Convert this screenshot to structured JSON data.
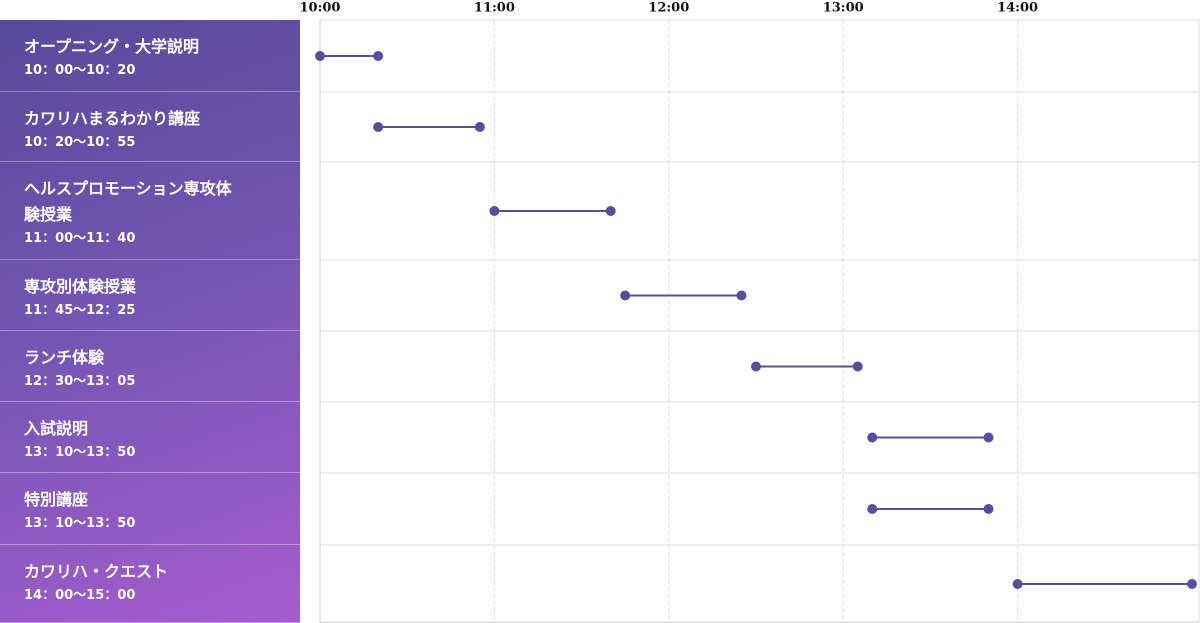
{
  "chart_data": {
    "type": "range",
    "categories": [
      "オープニング・大学説明",
      "カワリハまるわかり講座",
      "ヘルスプロモーション専攻体験授業",
      "専攻別体験授業",
      "ランチ体験",
      "入試説明",
      "特別講座",
      "カワリハ・クエスト"
    ],
    "time_labels": [
      "10：00〜10：20",
      "10：20〜10：55",
      "11：00〜11：40",
      "11：45〜12：25",
      "12：30〜13：05",
      "13：10〜13：50",
      "13：10〜13：50",
      "14：00〜15：00"
    ],
    "start": [
      600,
      620,
      660,
      705,
      750,
      790,
      790,
      840
    ],
    "end": [
      620,
      655,
      700,
      745,
      785,
      830,
      830,
      900
    ],
    "color": "#5d4b9c",
    "xlim": [
      600,
      900
    ],
    "xticks": [
      {
        "value": 600,
        "label": "10:00"
      },
      {
        "value": 660,
        "label": "11:00"
      },
      {
        "value": 720,
        "label": "12:00"
      },
      {
        "value": 780,
        "label": "13:00"
      },
      {
        "value": 840,
        "label": "14:00"
      }
    ],
    "grid": true
  }
}
